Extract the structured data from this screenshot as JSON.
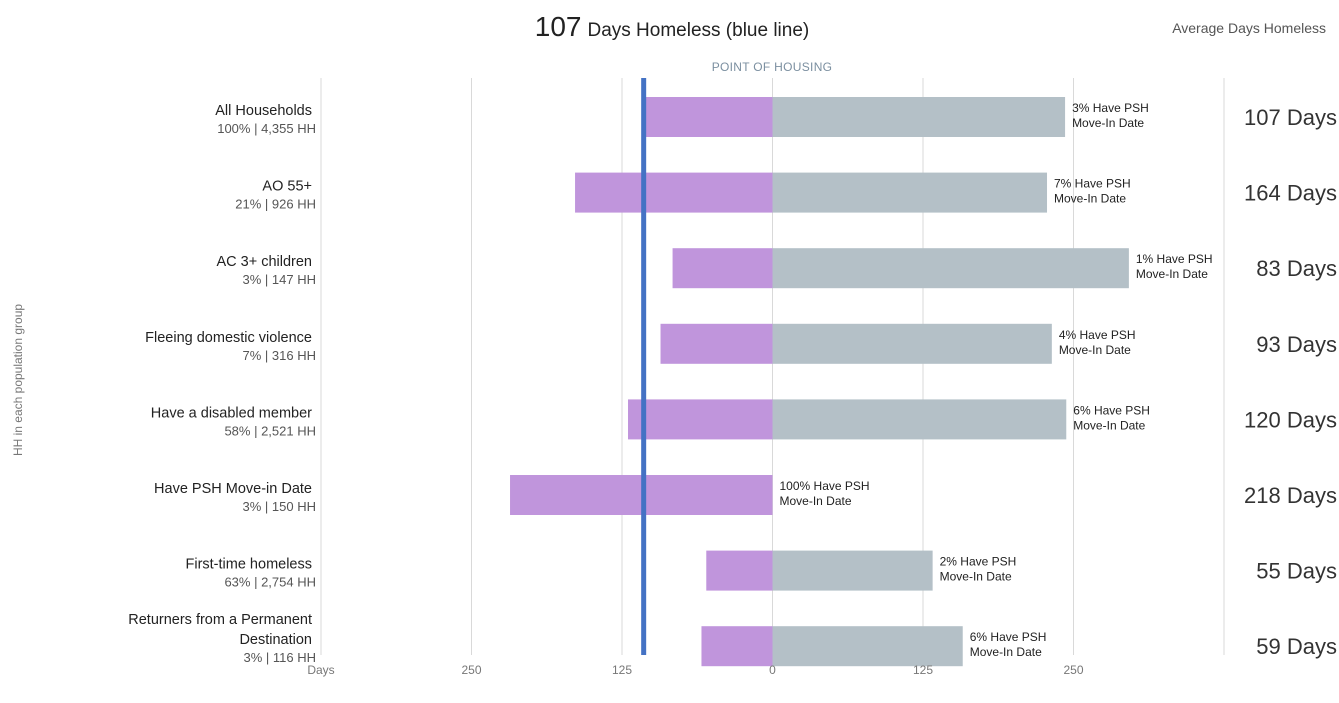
{
  "header": {
    "headline_value": "107",
    "headline_text": "Days Homeless (blue line)",
    "right_title": "Average Days Homeless"
  },
  "center_label": "POINT OF HOUSING",
  "y_axis_label": "HH in each population group",
  "x_axis": {
    "left_label": "Days",
    "ticks": [
      {
        "label": "250",
        "value": -250
      },
      {
        "label": "125",
        "value": -125
      },
      {
        "label": "0",
        "value": 0
      },
      {
        "label": "125",
        "value": 125
      },
      {
        "label": "250",
        "value": 250
      }
    ]
  },
  "colors": {
    "before_bar": "#c095dc",
    "after_bar": "#b4c0c7",
    "avg_line": "#4472c4",
    "grid": "#d9d9d9"
  },
  "chart_data": {
    "type": "bar",
    "orientation": "horizontal-diverging",
    "x_domain": [
      -375,
      375
    ],
    "average_line_value": -107,
    "categories": [
      "All Households",
      "AO 55+",
      "AC 3+ children",
      "Fleeing domestic violence",
      "Have a disabled member",
      "Have PSH Move-in Date",
      "First-time homeless",
      "Returners from a Permanent Destination"
    ],
    "rows": [
      {
        "name_lines": [
          "All Households"
        ],
        "share": "100% | 4,355 HH",
        "days_before": 107,
        "days_after": 243,
        "psh_pct": "3% Have PSH",
        "psh_sub": "Move-In Date",
        "avg_label": "107 Days"
      },
      {
        "name_lines": [
          "AO 55+"
        ],
        "share": "21% | 926 HH",
        "days_before": 164,
        "days_after": 228,
        "psh_pct": "7% Have PSH",
        "psh_sub": "Move-In Date",
        "avg_label": "164 Days"
      },
      {
        "name_lines": [
          "AC 3+ children"
        ],
        "share": "3% | 147 HH",
        "days_before": 83,
        "days_after": 296,
        "psh_pct": "1% Have PSH",
        "psh_sub": "Move-In Date",
        "avg_label": "83 Days"
      },
      {
        "name_lines": [
          "Fleeing domestic violence"
        ],
        "share": "7% | 316 HH",
        "days_before": 93,
        "days_after": 232,
        "psh_pct": "4% Have PSH",
        "psh_sub": "Move-In Date",
        "avg_label": "93 Days"
      },
      {
        "name_lines": [
          "Have a disabled member"
        ],
        "share": "58% | 2,521 HH",
        "days_before": 120,
        "days_after": 244,
        "psh_pct": "6% Have PSH",
        "psh_sub": "Move-In Date",
        "avg_label": "120 Days"
      },
      {
        "name_lines": [
          "Have PSH Move-in Date"
        ],
        "share": "3% | 150 HH",
        "days_before": 218,
        "days_after": 0,
        "psh_pct": "100% Have PSH",
        "psh_sub": "Move-In Date",
        "avg_label": "218 Days"
      },
      {
        "name_lines": [
          "First-time homeless"
        ],
        "share": "63% | 2,754 HH",
        "days_before": 55,
        "days_after": 133,
        "psh_pct": "2% Have PSH",
        "psh_sub": "Move-In Date",
        "avg_label": "55 Days"
      },
      {
        "name_lines": [
          "Returners from a Permanent",
          "Destination"
        ],
        "share": "3% | 116 HH",
        "days_before": 59,
        "days_after": 158,
        "psh_pct": "6% Have PSH",
        "psh_sub": "Move-In Date",
        "avg_label": "59 Days"
      }
    ]
  }
}
